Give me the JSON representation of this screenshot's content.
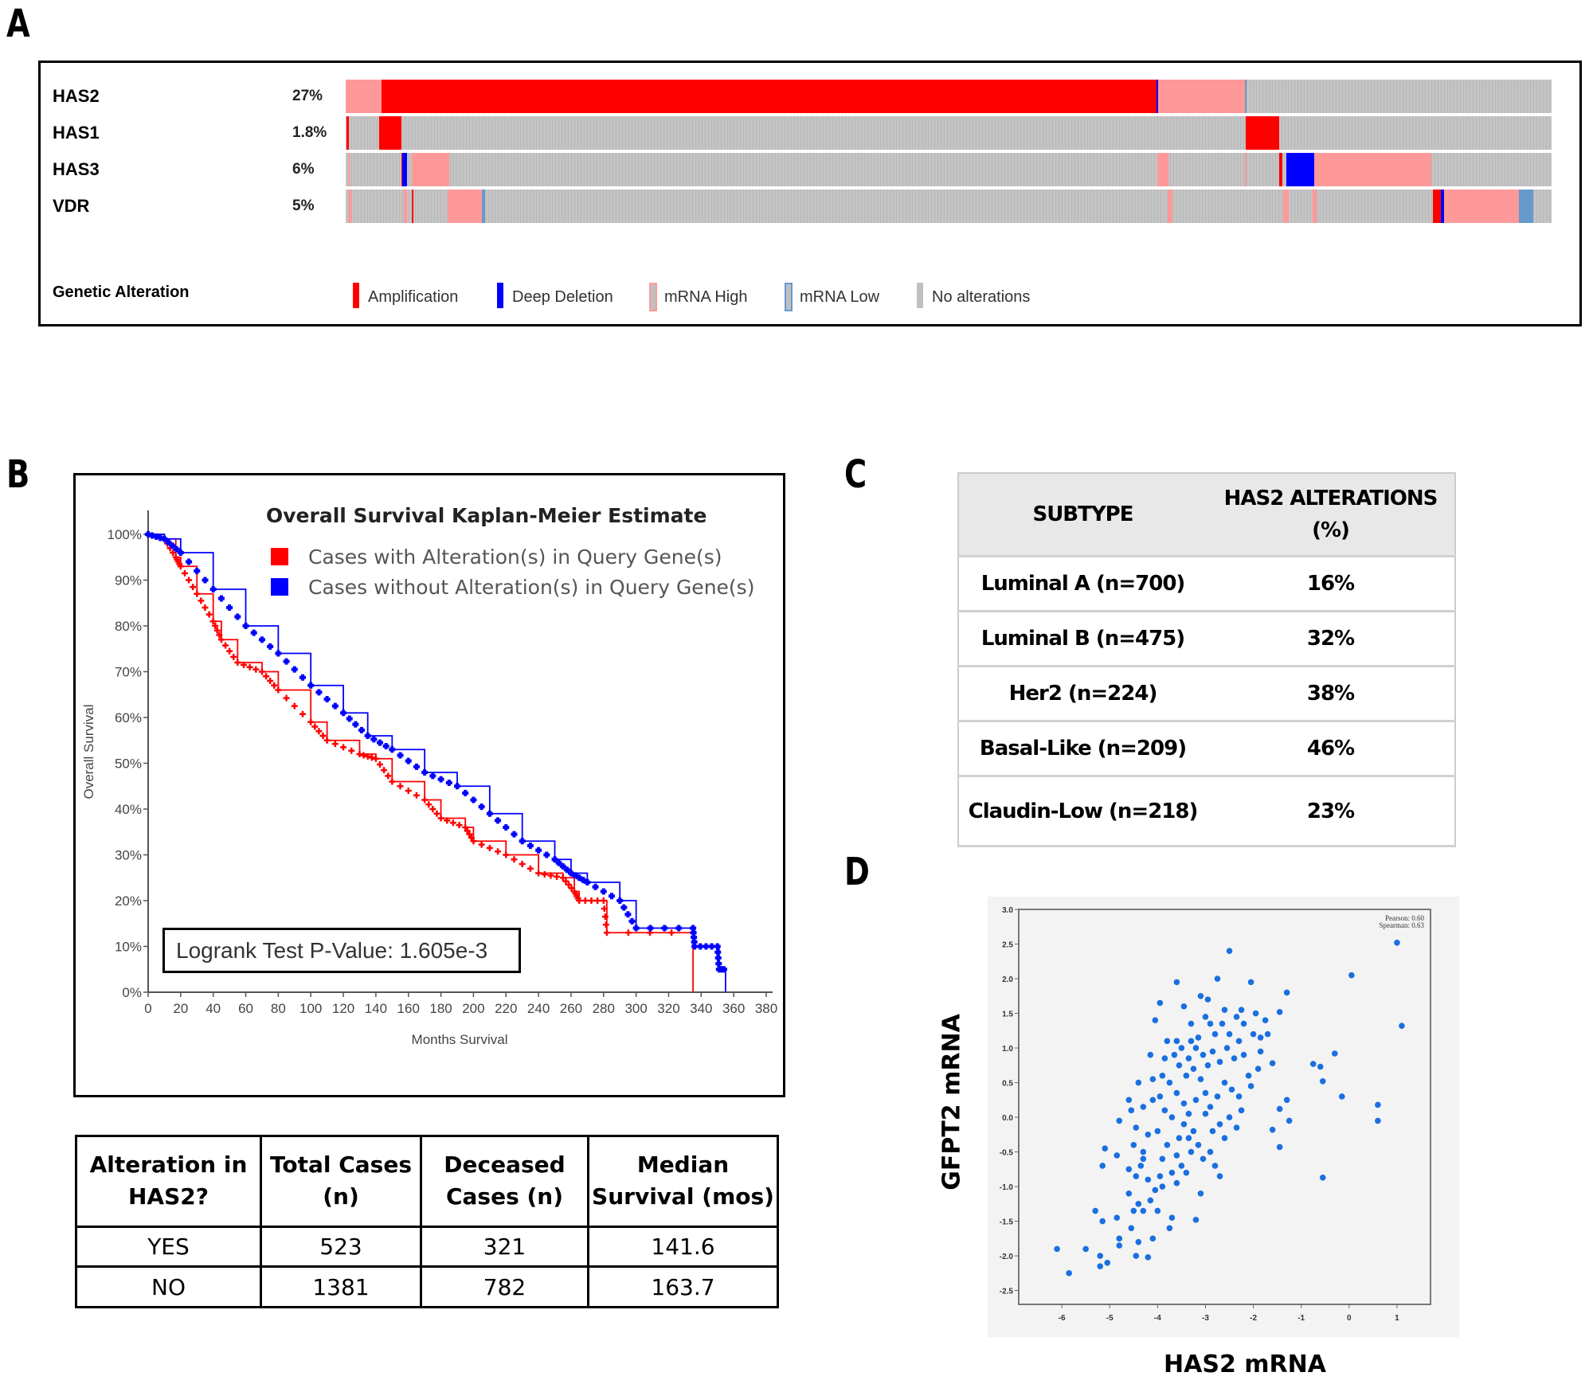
{
  "panel_labels": {
    "a": "A",
    "b": "B",
    "c": "C",
    "d": "D"
  },
  "panelA": {
    "genes": [
      {
        "name": "HAS2",
        "percent": "27%"
      },
      {
        "name": "HAS1",
        "percent": "1.8%"
      },
      {
        "name": "HAS3",
        "percent": "6%"
      },
      {
        "name": "VDR",
        "percent": "5%"
      }
    ],
    "legend_title": "Genetic Alteration",
    "legend": [
      {
        "label": "Amplification",
        "color": "#ff0000"
      },
      {
        "label": "Deep Deletion",
        "color": "#0000ff"
      },
      {
        "label": "mRNA High",
        "color": "#ff9999"
      },
      {
        "label": "mRNA Low",
        "color": "#6699cc"
      },
      {
        "label": "No alterations",
        "color": "#c0c0c0"
      }
    ]
  },
  "survival_table": {
    "headers": [
      "Alteration in HAS2?",
      "Total Cases (n)",
      "Deceased Cases (n)",
      "Median Survival (mos)"
    ],
    "rows": [
      [
        "YES",
        "523",
        "321",
        "141.6"
      ],
      [
        "NO",
        "1381",
        "782",
        "163.7"
      ]
    ]
  },
  "subtype_table": {
    "headers": [
      "SUBTYPE",
      "HAS2 ALTERATIONS (%)"
    ],
    "rows": [
      [
        "Luminal A (n=700)",
        "16%"
      ],
      [
        "Luminal B (n=475)",
        "32%"
      ],
      [
        "Her2 (n=224)",
        "38%"
      ],
      [
        "Basal-Like (n=209)",
        "46%"
      ],
      [
        "Claudin-Low (n=218)",
        "23%"
      ]
    ]
  },
  "chart_data": [
    {
      "type": "line",
      "title": "Overall Survival Kaplan-Meier Estimate",
      "xlabel": "Months Survival",
      "ylabel": "Overall Survival",
      "xlim": [
        0,
        380
      ],
      "ylim": [
        0,
        100
      ],
      "xticks": [
        "0",
        "20",
        "40",
        "60",
        "80",
        "100",
        "120",
        "140",
        "160",
        "180",
        "200",
        "220",
        "240",
        "260",
        "280",
        "300",
        "320",
        "340",
        "360",
        "380"
      ],
      "yticks": [
        "0%",
        "10%",
        "20%",
        "30%",
        "40%",
        "50%",
        "60%",
        "70%",
        "80%",
        "90%",
        "100%"
      ],
      "grid": false,
      "legend_position": "top-right",
      "annotation": "Logrank Test P-Value: 1.605e-3",
      "series": [
        {
          "name": "Cases with Alteration(s) in Query Gene(s)",
          "color": "#ff0000",
          "x": [
            0,
            10,
            17,
            20,
            30,
            40,
            45,
            55,
            70,
            80,
            100,
            110,
            130,
            140,
            150,
            170,
            180,
            195,
            200,
            220,
            240,
            255,
            262,
            265,
            280,
            282,
            335,
            335
          ],
          "y": [
            100,
            99,
            95,
            93,
            87,
            81,
            77,
            72,
            70,
            66,
            59,
            55,
            52,
            51,
            46,
            42,
            38,
            36,
            33,
            30,
            26,
            25,
            22,
            20,
            20,
            13,
            13,
            0
          ]
        },
        {
          "name": "Cases without Alteration(s) in Query Gene(s)",
          "color": "#0000ff",
          "x": [
            0,
            10,
            20,
            40,
            60,
            80,
            100,
            120,
            135,
            150,
            170,
            190,
            210,
            230,
            250,
            260,
            270,
            290,
            300,
            335,
            336,
            350,
            351,
            355,
            355
          ],
          "y": [
            100,
            99,
            96,
            88,
            80,
            74,
            67,
            61,
            56,
            53,
            48,
            45,
            39,
            33,
            29,
            26,
            24,
            20,
            14,
            14,
            10,
            10,
            5,
            5,
            0
          ]
        }
      ]
    },
    {
      "type": "scatter",
      "xlabel": "HAS2 mRNA",
      "ylabel": "GFPT2 mRNA",
      "xlim": [
        -6.9,
        1.7
      ],
      "ylim": [
        -2.7,
        3.0
      ],
      "xticks": [
        "-6",
        "-5",
        "-4",
        "-3",
        "-2",
        "-1",
        "0",
        "1"
      ],
      "yticks": [
        "-2.5",
        "-2.0",
        "-1.5",
        "-1.0",
        "-0.5",
        "0.0",
        "0.5",
        "1.0",
        "1.5",
        "2.0",
        "2.5",
        "3.0"
      ],
      "annotations": [
        "Pearson: 0.60",
        "Spearman: 0.63"
      ],
      "color": "#1a6fe0",
      "points": [
        [
          -6.1,
          -1.9
        ],
        [
          -5.85,
          -2.25
        ],
        [
          -5.5,
          -1.9
        ],
        [
          -5.2,
          -2.15
        ],
        [
          -5.2,
          -2.0
        ],
        [
          -5.05,
          -2.1
        ],
        [
          -5.3,
          -1.35
        ],
        [
          -5.15,
          -1.5
        ],
        [
          -4.85,
          -1.45
        ],
        [
          -4.8,
          -1.75
        ],
        [
          -4.8,
          -1.85
        ],
        [
          -4.2,
          -2.02
        ],
        [
          -4.45,
          -2.0
        ],
        [
          -4.1,
          -1.75
        ],
        [
          -4.8,
          -0.05
        ],
        [
          -5.1,
          -0.45
        ],
        [
          -5.15,
          -0.7
        ],
        [
          -4.85,
          -0.55
        ],
        [
          -2.5,
          2.4
        ],
        [
          -2.75,
          2.0
        ],
        [
          -2.05,
          1.95
        ],
        [
          -3.6,
          1.95
        ],
        [
          -3.95,
          1.65
        ],
        [
          -1.3,
          1.8
        ],
        [
          1.0,
          2.52
        ],
        [
          0.05,
          2.05
        ],
        [
          1.1,
          1.32
        ],
        [
          -0.3,
          0.92
        ],
        [
          -0.75,
          0.77
        ],
        [
          -0.6,
          0.73
        ],
        [
          -0.55,
          0.52
        ],
        [
          -0.15,
          0.3
        ],
        [
          0.6,
          0.18
        ],
        [
          0.6,
          -0.05
        ],
        [
          -0.55,
          -0.87
        ],
        [
          -1.3,
          0.25
        ],
        [
          -1.45,
          0.12
        ],
        [
          -1.25,
          -0.05
        ],
        [
          -1.6,
          -0.18
        ],
        [
          -1.45,
          -0.43
        ],
        [
          -1.45,
          1.52
        ],
        [
          -1.6,
          0.78
        ],
        [
          -3.2,
          -1.48
        ],
        [
          -3.1,
          -1.1
        ],
        [
          -3.75,
          -1.6
        ],
        [
          -3.7,
          -1.45
        ],
        [
          -2.7,
          -0.85
        ],
        [
          -4.6,
          -1.1
        ],
        [
          -4.5,
          -1.35
        ],
        [
          -4.4,
          -1.25
        ],
        [
          -4.55,
          -1.6
        ],
        [
          -4.3,
          -1.35
        ],
        [
          -4.4,
          -1.8
        ],
        [
          -4.15,
          -1.2
        ],
        [
          -4.0,
          -1.35
        ],
        [
          -3.9,
          -1.0
        ],
        [
          -4.05,
          -1.05
        ],
        [
          -4.2,
          -0.9
        ],
        [
          -4.35,
          -0.7
        ],
        [
          -4.45,
          -0.85
        ],
        [
          -4.6,
          -0.75
        ],
        [
          -4.3,
          -0.5
        ],
        [
          -4.5,
          -0.4
        ],
        [
          -4.2,
          -0.25
        ],
        [
          -4.45,
          -0.15
        ],
        [
          -4.0,
          -0.2
        ],
        [
          -3.9,
          -0.6
        ],
        [
          -3.8,
          -0.4
        ],
        [
          -3.7,
          -0.8
        ],
        [
          -3.6,
          -0.55
        ],
        [
          -3.55,
          -0.3
        ],
        [
          -3.45,
          -0.1
        ],
        [
          -3.7,
          0.0
        ],
        [
          -3.85,
          0.1
        ],
        [
          -3.95,
          0.3
        ],
        [
          -4.1,
          0.25
        ],
        [
          -4.3,
          0.15
        ],
        [
          -4.6,
          0.25
        ],
        [
          -4.55,
          0.1
        ],
        [
          -4.4,
          0.5
        ],
        [
          -4.1,
          0.55
        ],
        [
          -3.9,
          0.6
        ],
        [
          -3.75,
          0.5
        ],
        [
          -3.6,
          0.35
        ],
        [
          -3.45,
          0.2
        ],
        [
          -3.35,
          0.05
        ],
        [
          -3.25,
          -0.2
        ],
        [
          -3.15,
          -0.4
        ],
        [
          -3.05,
          -0.6
        ],
        [
          -3.3,
          -0.5
        ],
        [
          -3.4,
          -0.8
        ],
        [
          -3.5,
          -0.7
        ],
        [
          -2.9,
          -0.5
        ],
        [
          -2.8,
          -0.7
        ],
        [
          -2.6,
          -0.3
        ],
        [
          -2.7,
          -0.1
        ],
        [
          -2.5,
          0.0
        ],
        [
          -2.35,
          -0.15
        ],
        [
          -2.25,
          0.1
        ],
        [
          -2.3,
          0.3
        ],
        [
          -2.45,
          0.4
        ],
        [
          -2.6,
          0.5
        ],
        [
          -2.75,
          0.3
        ],
        [
          -2.9,
          0.15
        ],
        [
          -3.0,
          0.35
        ],
        [
          -3.1,
          0.55
        ],
        [
          -3.25,
          0.7
        ],
        [
          -3.4,
          0.6
        ],
        [
          -3.55,
          0.75
        ],
        [
          -3.65,
          0.9
        ],
        [
          -3.5,
          1.0
        ],
        [
          -3.35,
          0.85
        ],
        [
          -3.2,
          1.0
        ],
        [
          -3.05,
          0.9
        ],
        [
          -2.95,
          0.75
        ],
        [
          -2.85,
          0.95
        ],
        [
          -2.7,
          0.8
        ],
        [
          -2.55,
          1.0
        ],
        [
          -2.4,
          0.85
        ],
        [
          -2.2,
          0.9
        ],
        [
          -2.1,
          0.6
        ],
        [
          -2.05,
          0.45
        ],
        [
          -1.9,
          0.7
        ],
        [
          -1.85,
          0.95
        ],
        [
          -2.0,
          1.2
        ],
        [
          -2.2,
          1.35
        ],
        [
          -2.35,
          1.45
        ],
        [
          -2.5,
          1.2
        ],
        [
          -2.65,
          1.35
        ],
        [
          -2.8,
          1.2
        ],
        [
          -2.9,
          1.35
        ],
        [
          -3.0,
          1.45
        ],
        [
          -3.15,
          1.15
        ],
        [
          -3.3,
          1.1
        ],
        [
          -3.45,
          1.6
        ],
        [
          -3.1,
          1.75
        ],
        [
          -2.95,
          1.7
        ],
        [
          -2.6,
          1.55
        ],
        [
          -2.25,
          1.55
        ],
        [
          -1.95,
          1.5
        ],
        [
          -1.75,
          1.4
        ],
        [
          -1.7,
          1.2
        ],
        [
          -1.85,
          1.15
        ],
        [
          -3.6,
          1.1
        ],
        [
          -3.8,
          1.1
        ],
        [
          -4.15,
          0.9
        ],
        [
          -3.85,
          0.85
        ],
        [
          -4.05,
          1.4
        ],
        [
          -3.3,
          1.35
        ],
        [
          -2.3,
          1.1
        ],
        [
          -4.3,
          -0.6
        ],
        [
          -3.95,
          -0.85
        ],
        [
          -3.6,
          -0.95
        ],
        [
          -3.35,
          -0.3
        ],
        [
          -3.2,
          0.25
        ],
        [
          -3.0,
          0.05
        ],
        [
          -2.85,
          -0.2
        ]
      ]
    }
  ]
}
